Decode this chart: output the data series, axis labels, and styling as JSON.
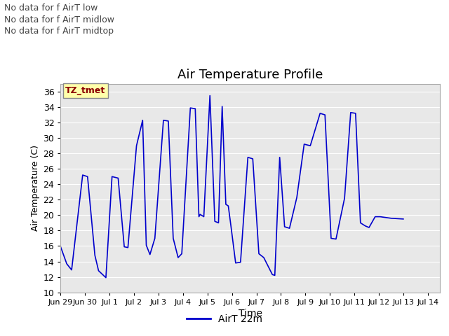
{
  "title": "Air Temperature Profile",
  "xlabel": "Time",
  "ylabel": "Air Temperature (C)",
  "ylim": [
    10,
    37
  ],
  "yticks": [
    10,
    12,
    14,
    16,
    18,
    20,
    22,
    24,
    26,
    28,
    30,
    32,
    34,
    36
  ],
  "line_color": "#0000cc",
  "line_width": 1.2,
  "bg_color": "#e8e8e8",
  "legend_label": "AirT 22m",
  "annotations_top": [
    "No data for f AirT low",
    "No data for f AirT midlow",
    "No data for f AirT midtop"
  ],
  "tz_label": "TZ_tmet",
  "x_tick_labels": [
    "Jun 29",
    "Jun 30",
    "Jul 1",
    "Jul 2",
    "Jul 3",
    "Jul 4",
    "Jul 5",
    "Jul 6",
    "Jul 7",
    "Jul 8",
    "Jul 9",
    "Jul 10",
    "Jul 11",
    "Jul 12",
    "Jul 13",
    "Jul 14"
  ],
  "time_series": [
    [
      0.0,
      15.9
    ],
    [
      0.25,
      13.7
    ],
    [
      0.45,
      12.9
    ],
    [
      0.9,
      25.2
    ],
    [
      1.1,
      25.0
    ],
    [
      1.4,
      14.8
    ],
    [
      1.55,
      12.8
    ],
    [
      1.85,
      11.9
    ],
    [
      2.1,
      25.0
    ],
    [
      2.35,
      24.8
    ],
    [
      2.6,
      15.9
    ],
    [
      2.75,
      15.8
    ],
    [
      3.1,
      29.0
    ],
    [
      3.35,
      32.3
    ],
    [
      3.5,
      16.1
    ],
    [
      3.65,
      14.9
    ],
    [
      3.85,
      17.0
    ],
    [
      4.2,
      32.3
    ],
    [
      4.4,
      32.2
    ],
    [
      4.6,
      17.0
    ],
    [
      4.8,
      14.5
    ],
    [
      4.95,
      15.0
    ],
    [
      5.3,
      33.9
    ],
    [
      5.5,
      33.8
    ],
    [
      5.65,
      19.8
    ],
    [
      5.7,
      20.1
    ],
    [
      5.85,
      19.8
    ],
    [
      6.1,
      35.5
    ],
    [
      6.3,
      19.2
    ],
    [
      6.45,
      19.0
    ],
    [
      6.6,
      34.1
    ],
    [
      6.75,
      21.4
    ],
    [
      6.85,
      21.2
    ],
    [
      6.95,
      18.8
    ],
    [
      7.15,
      13.8
    ],
    [
      7.35,
      13.9
    ],
    [
      7.65,
      27.5
    ],
    [
      7.85,
      27.3
    ],
    [
      8.1,
      15.0
    ],
    [
      8.3,
      14.5
    ],
    [
      8.65,
      12.3
    ],
    [
      8.75,
      12.2
    ],
    [
      8.95,
      27.5
    ],
    [
      9.15,
      18.5
    ],
    [
      9.35,
      18.3
    ],
    [
      9.65,
      22.3
    ],
    [
      9.95,
      29.2
    ],
    [
      10.2,
      29.0
    ],
    [
      10.6,
      33.2
    ],
    [
      10.8,
      33.0
    ],
    [
      11.05,
      17.0
    ],
    [
      11.25,
      16.9
    ],
    [
      11.6,
      22.2
    ],
    [
      11.85,
      33.3
    ],
    [
      12.05,
      33.2
    ],
    [
      12.25,
      19.0
    ],
    [
      12.45,
      18.6
    ],
    [
      12.6,
      18.4
    ],
    [
      12.85,
      19.8
    ],
    [
      13.05,
      19.8
    ],
    [
      13.5,
      19.6
    ],
    [
      14.0,
      19.5
    ]
  ]
}
